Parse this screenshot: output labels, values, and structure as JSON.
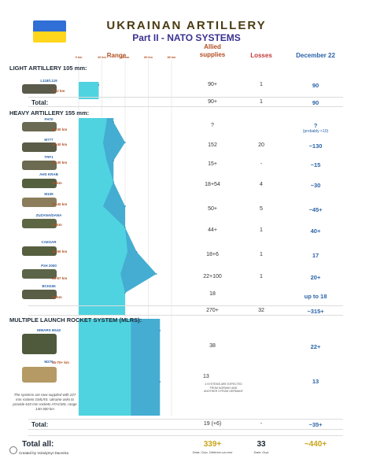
{
  "header": {
    "title": "UKRAINAN ARTILLERY",
    "subtitle": "Part II - NATO SYSTEMS"
  },
  "columns": {
    "range": "Range",
    "supplies_1": "Allied",
    "supplies_2": "supplies",
    "losses": "Losses",
    "december": "December 22"
  },
  "sections": {
    "light": "LIGHT ARTILLERY 105 mm:",
    "heavy": "HEAVY ARTILLERY 155 mm:",
    "mlrs": "MULTIPLE LAUNCH ROCKET SYSTEM (MLRS):"
  },
  "rows": {
    "l119": {
      "name": "L118/L119",
      "range": "17.2 km",
      "supplies": "90+",
      "losses": "1",
      "dec": "90"
    },
    "light_total": {
      "label": "Total:",
      "supplies": "90+",
      "losses": "1",
      "dec": "90"
    },
    "fh70": {
      "name": "FH70",
      "range": "24-30 km",
      "supplies": "?",
      "losses": "",
      "dec": "?",
      "dec_note": "(probably <10)"
    },
    "m777": {
      "name": "M777",
      "range": "21-40 km",
      "supplies": "152",
      "losses": "20",
      "dec": "~130"
    },
    "trf1": {
      "name": "TRF1",
      "range": "24-30 km",
      "supplies": "15+",
      "losses": "-",
      "dec": "~15"
    },
    "ahs": {
      "name": "AHS KRAB",
      "range": "30 km",
      "supplies": "18+54",
      "losses": "4",
      "dec": "~30"
    },
    "m109": {
      "name": "M109",
      "range": "21-40 km",
      "supplies": "50+",
      "losses": "5",
      "dec": "~45+"
    },
    "zuzana": {
      "name": "ZUZANA/DANA",
      "range": "40 km",
      "supplies": "44+",
      "losses": "1",
      "dec": "40+"
    },
    "caesar": {
      "name": "CAESAR",
      "range": "42-50 km",
      "supplies": "18+6",
      "losses": "1",
      "dec": "17"
    },
    "pzh": {
      "name": "PzH 2000",
      "range": "36-67 km",
      "supplies": "22+100",
      "losses": "1",
      "dec": "20+"
    },
    "bch": {
      "name": "BCH155",
      "range": "40 km",
      "supplies": "18",
      "losses": "",
      "dec": "up to 18"
    },
    "heavy_total": {
      "supplies": "270+",
      "losses": "32",
      "dec": "~315+"
    },
    "himars": {
      "name": "HIMARS M142",
      "range": "45-70+ km",
      "supplies": "38",
      "losses": "",
      "dec": "22+"
    },
    "m270": {
      "name": "M270",
      "supplies": "13",
      "losses": "",
      "dec": "13",
      "tiny": "4 SYSTEMS ARE EXPECTED FROM NORWAY AND ANOTHER 3 FROM GERMANY"
    },
    "mlrs_total": {
      "label": "Total:",
      "supplies": "19 (+6)",
      "losses": "-",
      "dec": "~35+"
    }
  },
  "note": "The systems are now supplied with 227 mm rockets GMLRS. Ukraine asks to provide 610 mm rockets ATACMS, range 140-300 km",
  "grand_total": {
    "label": "Total all:",
    "supplies": "339+",
    "losses": "33",
    "dec": "~440+",
    "supplies_src": "Data: Oryx, Defence-ua.com",
    "losses_src": "Data: Oryx"
  },
  "credit": "Created by Volodymyr Dacenko",
  "chart_data": {
    "type": "area",
    "title": "Range",
    "xlabel": "Range",
    "xlim": [
      0,
      80
    ],
    "xticks": [
      "0 km",
      "20 km",
      "40 km",
      "60 km",
      "80 km"
    ],
    "grid": true,
    "categories": [
      "L118/L119",
      "FH70",
      "M777",
      "TRF1",
      "AHS KRAB",
      "M109",
      "ZUZANA/DANA",
      "CAESAR",
      "PzH 2000",
      "BCH155",
      "HIMARS M142",
      "M270"
    ],
    "series": [
      {
        "name": "min",
        "values": [
          17.2,
          24,
          21,
          24,
          30,
          21,
          40,
          42,
          36,
          40,
          45,
          45
        ]
      },
      {
        "name": "max",
        "values": [
          17.2,
          30,
          40,
          30,
          30,
          40,
          40,
          50,
          67,
          40,
          70,
          70
        ]
      }
    ],
    "colors": {
      "min": "#4fd3e0",
      "max": "#3aa9cf"
    }
  }
}
